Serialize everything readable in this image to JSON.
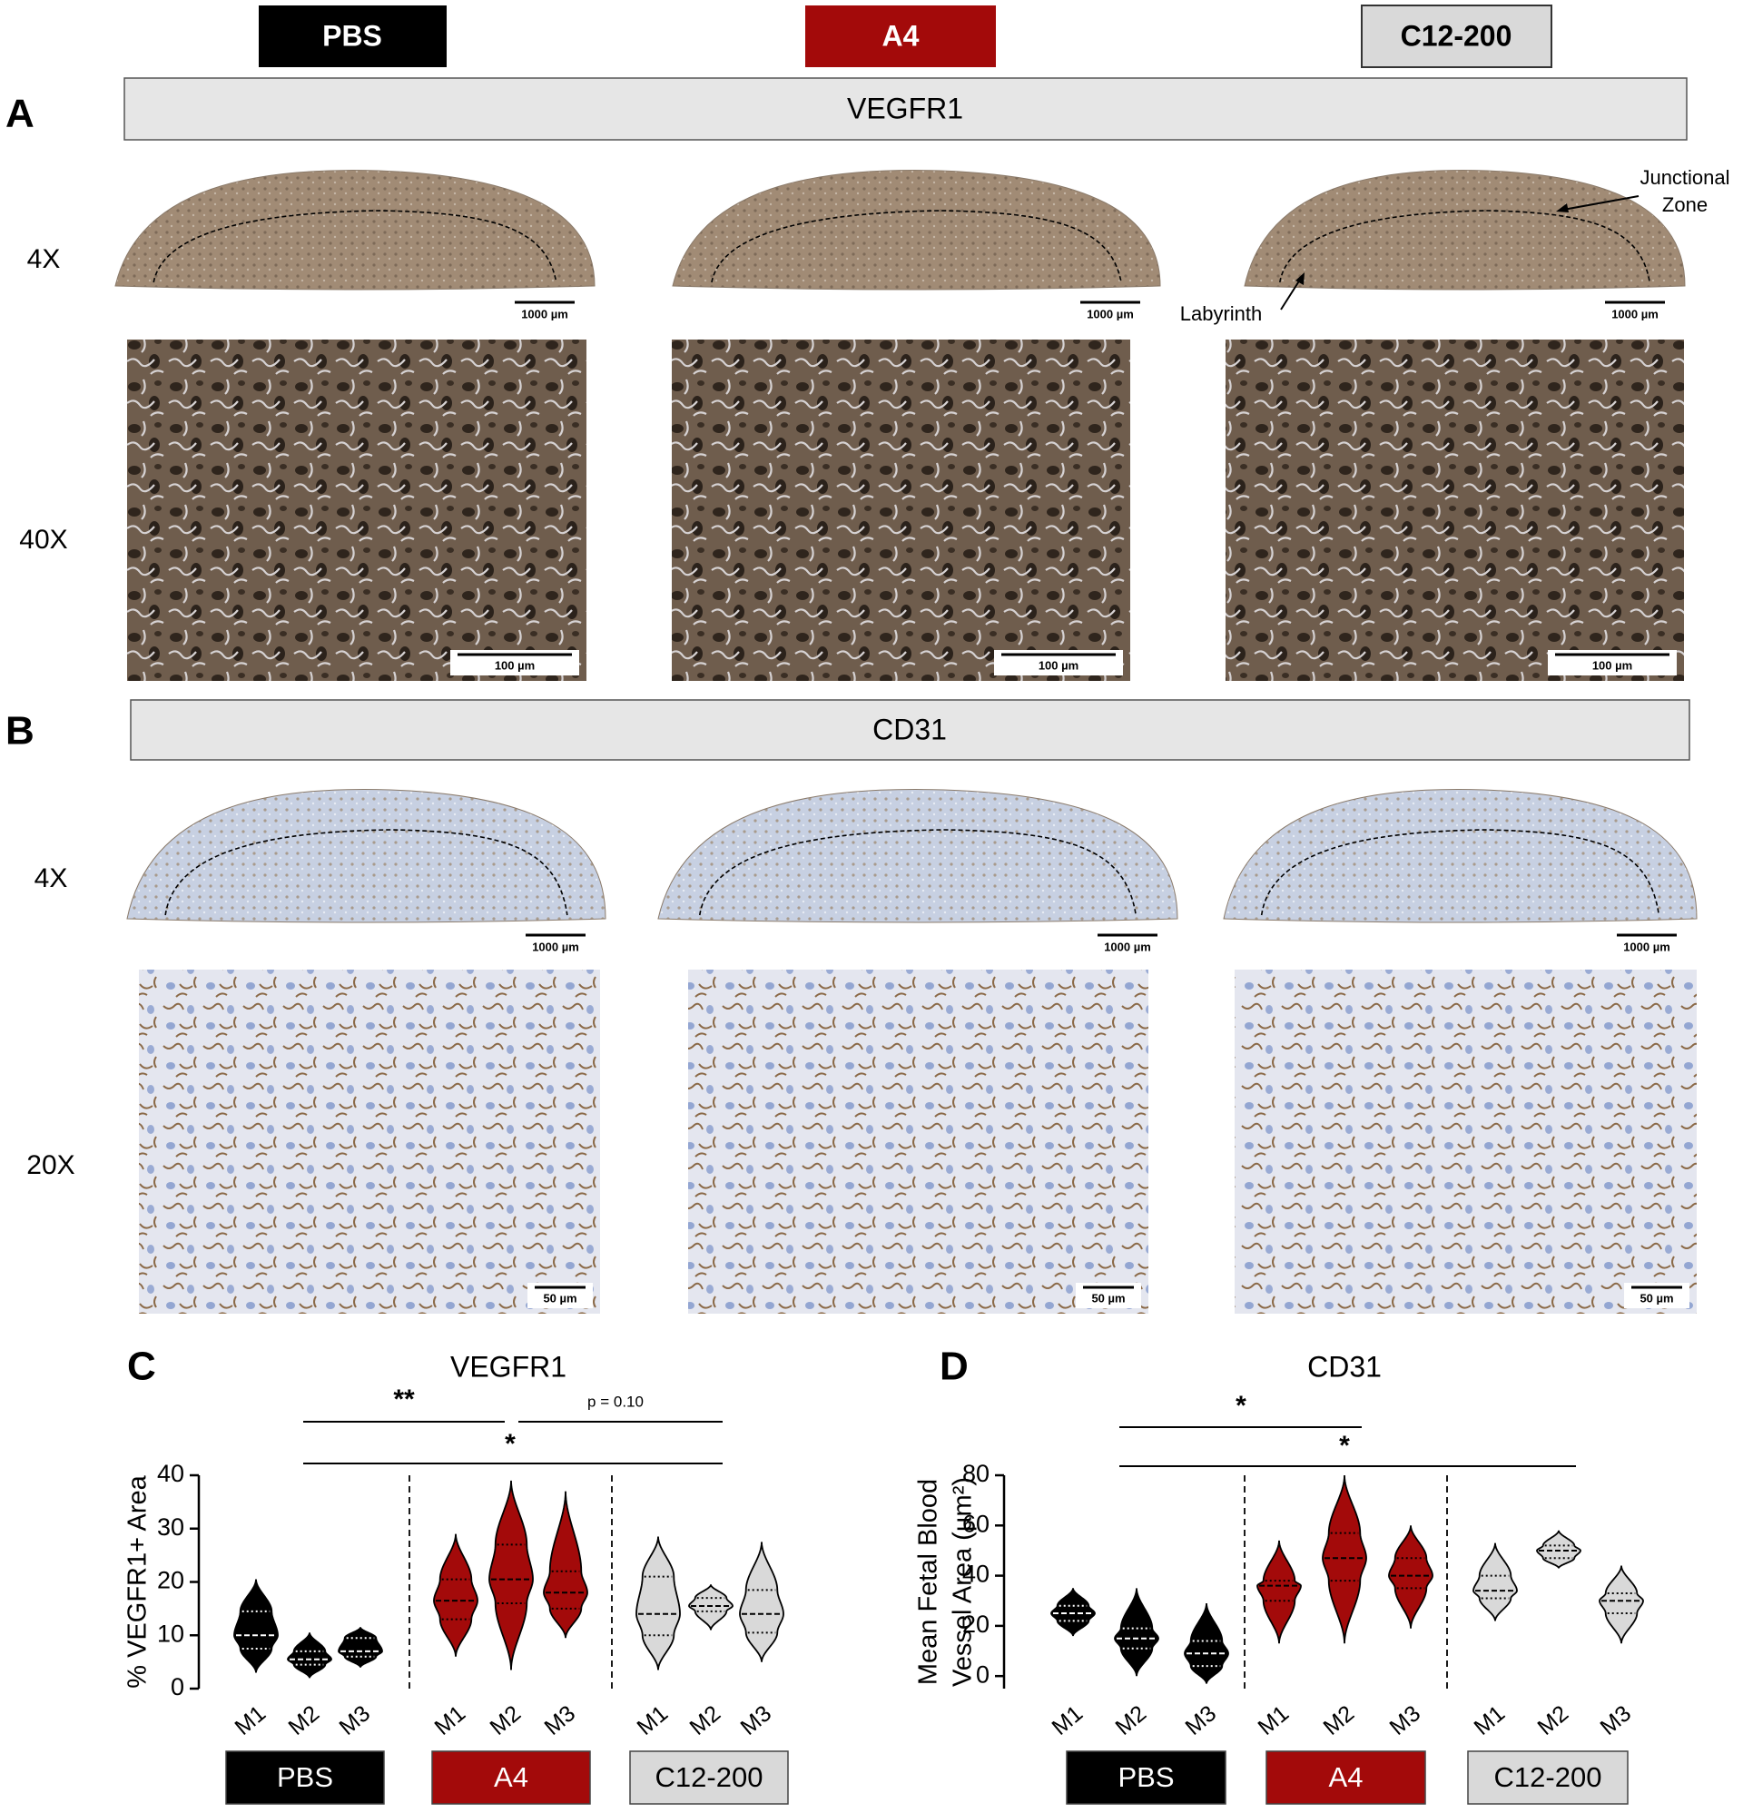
{
  "header": {
    "groups": [
      {
        "name": "PBS",
        "color": "#000000",
        "text_color": "#ffffff"
      },
      {
        "name": "A4",
        "color": "#a30a0a",
        "text_color": "#ffffff"
      },
      {
        "name": "C12-200",
        "color": "#d9d9d9",
        "text_color": "#000000"
      }
    ]
  },
  "panels": [
    {
      "letter": "A",
      "title": "VEGFR1",
      "rows": [
        {
          "label": "4X",
          "scale_bars": [
            "1000 µm",
            "1000 µm",
            "1000 µm"
          ]
        },
        {
          "label": "40X",
          "scale_bars": [
            "100 µm",
            "100 µm",
            "100 µm"
          ]
        }
      ],
      "annotations": [
        "Junctional",
        "Zone",
        "Labyrinth"
      ]
    },
    {
      "letter": "B",
      "title": "CD31",
      "rows": [
        {
          "label": "4X",
          "scale_bars": [
            "1000 µm",
            "1000 µm",
            "1000 µm"
          ]
        },
        {
          "label": "20X",
          "scale_bars": [
            "50 µm",
            "50 µm",
            "50 µm"
          ]
        }
      ]
    }
  ],
  "chart_data": [
    {
      "type": "violin",
      "letter": "C",
      "title": "VEGFR1",
      "ylabel": [
        "% VEGFR1+ Area"
      ],
      "ylim": [
        0,
        40
      ],
      "yticks": [
        0,
        10,
        20,
        30,
        40
      ],
      "categories": [
        "M1",
        "M2",
        "M3"
      ],
      "annotations": [
        "**",
        "p = 0.10",
        "*"
      ],
      "series": [
        {
          "name": "PBS",
          "color": "#000000",
          "line_color": "#ffffff",
          "text_color": "#ffffff",
          "values": [
            {
              "min": 3,
              "q1": 7.5,
              "median": 10,
              "q3": 14.5,
              "max": 20.5
            },
            {
              "min": 2,
              "q1": 4.5,
              "median": 5.5,
              "q3": 7,
              "max": 10.5
            },
            {
              "min": 4,
              "q1": 6,
              "median": 7,
              "q3": 9.5,
              "max": 11.5
            }
          ]
        },
        {
          "name": "A4",
          "color": "#a30a0a",
          "line_color": "#000000",
          "text_color": "#ffffff",
          "values": [
            {
              "min": 6,
              "q1": 13,
              "median": 16.5,
              "q3": 20.5,
              "max": 29
            },
            {
              "min": 3.5,
              "q1": 16,
              "median": 20.5,
              "q3": 27,
              "max": 39
            },
            {
              "min": 9.5,
              "q1": 15,
              "median": 18,
              "q3": 22,
              "max": 37
            }
          ]
        },
        {
          "name": "C12-200",
          "color": "#d9d9d9",
          "line_color": "#000000",
          "text_color": "#000000",
          "values": [
            {
              "min": 3.5,
              "q1": 10,
              "median": 14,
              "q3": 21,
              "max": 28.5
            },
            {
              "min": 11,
              "q1": 14.5,
              "median": 15.5,
              "q3": 17,
              "max": 19.5
            },
            {
              "min": 5,
              "q1": 10.5,
              "median": 14,
              "q3": 18.5,
              "max": 27.5
            }
          ]
        }
      ]
    },
    {
      "type": "violin",
      "letter": "D",
      "title": "CD31",
      "ylabel": [
        "Mean Fetal Blood",
        "Vessel Area (µm²)"
      ],
      "ylim": [
        -5,
        80
      ],
      "yticks": [
        0,
        20,
        40,
        60,
        80
      ],
      "categories": [
        "M1",
        "M2",
        "M3"
      ],
      "annotations": [
        "*",
        "*"
      ],
      "series": [
        {
          "name": "PBS",
          "color": "#000000",
          "line_color": "#ffffff",
          "text_color": "#ffffff",
          "values": [
            {
              "min": 16,
              "q1": 22,
              "median": 25,
              "q3": 28,
              "max": 35
            },
            {
              "min": 0,
              "q1": 11,
              "median": 15,
              "q3": 19,
              "max": 35
            },
            {
              "min": -3,
              "q1": 4,
              "median": 9,
              "q3": 14,
              "max": 29
            }
          ]
        },
        {
          "name": "A4",
          "color": "#a30a0a",
          "line_color": "#000000",
          "text_color": "#ffffff",
          "values": [
            {
              "min": 13,
              "q1": 30,
              "median": 36,
              "q3": 38,
              "max": 54
            },
            {
              "min": 13,
              "q1": 38,
              "median": 47,
              "q3": 57,
              "max": 80
            },
            {
              "min": 19,
              "q1": 35,
              "median": 40,
              "q3": 47,
              "max": 60
            }
          ]
        },
        {
          "name": "C12-200",
          "color": "#d9d9d9",
          "line_color": "#000000",
          "text_color": "#000000",
          "values": [
            {
              "min": 22,
              "q1": 31,
              "median": 34,
              "q3": 40,
              "max": 53
            },
            {
              "min": 43,
              "q1": 47,
              "median": 50,
              "q3": 52,
              "max": 58
            },
            {
              "min": 13,
              "q1": 25,
              "median": 30,
              "q3": 33,
              "max": 44
            }
          ]
        }
      ]
    }
  ]
}
